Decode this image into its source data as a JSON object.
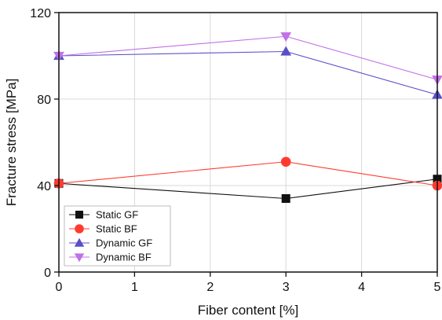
{
  "chart_data": {
    "type": "line",
    "title": "",
    "xlabel": "Fiber content [%]",
    "ylabel": "Fracture stress [MPa]",
    "xlim": [
      0,
      5
    ],
    "ylim": [
      0,
      120
    ],
    "xticks": [
      0,
      1,
      2,
      3,
      4,
      5
    ],
    "yticks": [
      0,
      40,
      80,
      120
    ],
    "grid": true,
    "legend_position": "bottom-left",
    "series": [
      {
        "name": "Static GF",
        "color": "#111111",
        "marker": "square",
        "x": [
          0,
          3,
          5
        ],
        "y": [
          41,
          34,
          43
        ]
      },
      {
        "name": "Static BF",
        "color": "#ff3b2f",
        "marker": "circle",
        "x": [
          0,
          3,
          5
        ],
        "y": [
          41,
          51,
          40
        ]
      },
      {
        "name": "Dynamic GF",
        "color": "#5b4fc8",
        "marker": "triangle-up",
        "x": [
          0,
          3,
          5
        ],
        "y": [
          100,
          102,
          82
        ]
      },
      {
        "name": "Dynamic BF",
        "color": "#c071e6",
        "marker": "triangle-down",
        "x": [
          0,
          3,
          5
        ],
        "y": [
          100,
          109,
          89
        ]
      }
    ]
  }
}
